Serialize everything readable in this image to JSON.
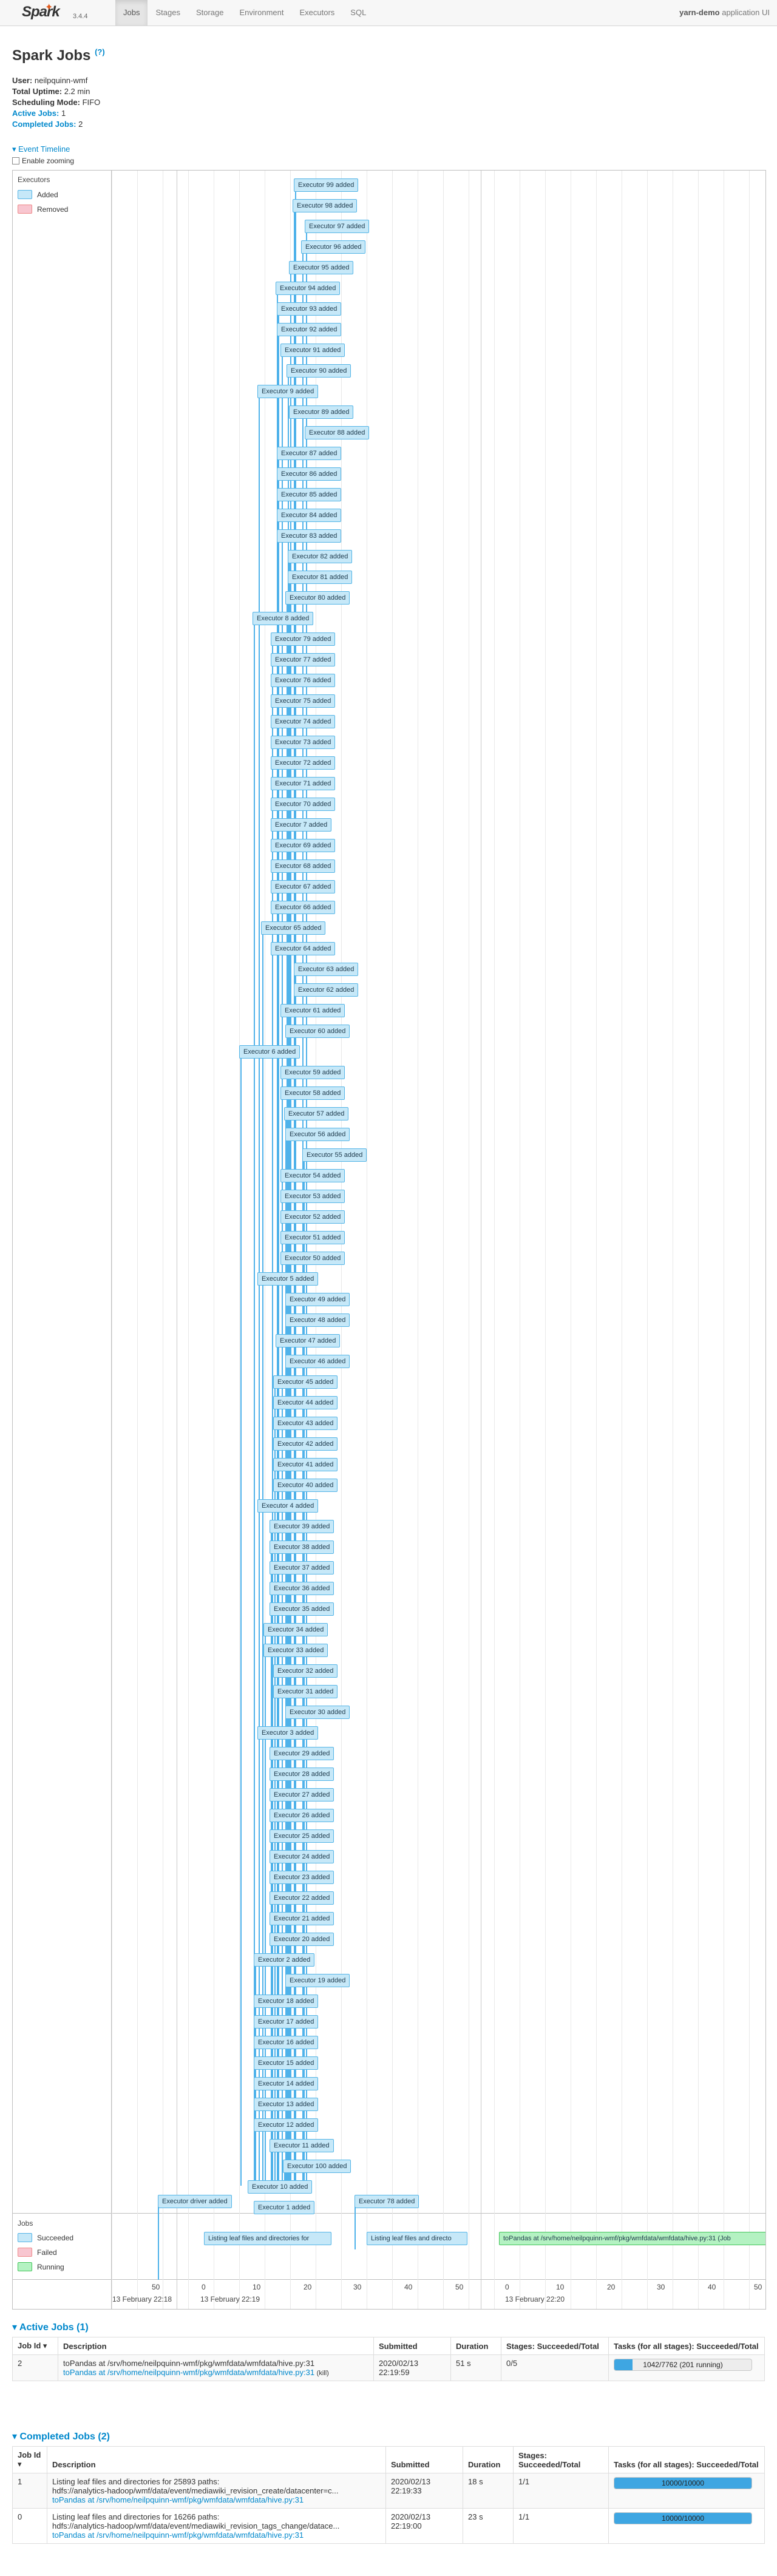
{
  "navbar": {
    "logo_text": "Spark",
    "version": "3.4.4",
    "tabs": [
      {
        "label": "Jobs",
        "active": true
      },
      {
        "label": "Stages",
        "active": false
      },
      {
        "label": "Storage",
        "active": false
      },
      {
        "label": "Environment",
        "active": false
      },
      {
        "label": "Executors",
        "active": false
      },
      {
        "label": "SQL",
        "active": false
      }
    ],
    "app_host": "yarn-demo",
    "app_suffix": "application UI"
  },
  "page": {
    "title": "Spark Jobs",
    "help": "(?)"
  },
  "summary": {
    "user_label": "User:",
    "user": "neilpquinn-wmf",
    "uptime_label": "Total Uptime:",
    "uptime": "2.2 min",
    "mode_label": "Scheduling Mode:",
    "mode": "FIFO",
    "active_jobs": "Active Jobs:",
    "active_count": "1",
    "completed_jobs": "Completed Jobs:",
    "completed_count": "2"
  },
  "timeline": {
    "toggle": "▾ Event Timeline",
    "zoom_label": "Enable zooming",
    "executors_group": "Executors",
    "legend_added": "Added",
    "legend_removed": "Removed",
    "jobs_group": "Jobs",
    "legend_succeeded": "Succeeded",
    "legend_failed": "Failed",
    "legend_running": "Running",
    "colors": {
      "added": "#c6e8f8",
      "removed": "#f8c6d0",
      "succeeded": "#c6e8f8",
      "failed": "#f8c6d0",
      "running": "#b4f2c2"
    },
    "axis_ticks": [
      "50",
      "0",
      "10",
      "20",
      "30",
      "40",
      "50",
      "0",
      "10",
      "20",
      "30",
      "40",
      "50"
    ],
    "axis_dates": [
      "13 February 22:18",
      "13 February 22:19",
      "13 February 22:20"
    ],
    "executor_events": [
      "Executor 99 added",
      "Executor 98 added",
      "Executor 97 added",
      "Executor 96 added",
      "Executor 95 added",
      "Executor 94 added",
      "Executor 93 added",
      "Executor 92 added",
      "Executor 91 added",
      "Executor 90 added",
      "Executor 9 added",
      "Executor 89 added",
      "Executor 88 added",
      "Executor 87 added",
      "Executor 86 added",
      "Executor 85 added",
      "Executor 84 added",
      "Executor 83 added",
      "Executor 82 added",
      "Executor 81 added",
      "Executor 80 added",
      "Executor 8 added",
      "Executor 79 added",
      "Executor 77 added",
      "Executor 76 added",
      "Executor 75 added",
      "Executor 74 added",
      "Executor 73 added",
      "Executor 72 added",
      "Executor 71 added",
      "Executor 70 added",
      "Executor 7 added",
      "Executor 69 added",
      "Executor 68 added",
      "Executor 67 added",
      "Executor 66 added",
      "Executor 65 added",
      "Executor 64 added",
      "Executor 63 added",
      "Executor 62 added",
      "Executor 61 added",
      "Executor 60 added",
      "Executor 6 added",
      "Executor 59 added",
      "Executor 58 added",
      "Executor 57 added",
      "Executor 56 added",
      "Executor 55 added",
      "Executor 54 added",
      "Executor 53 added",
      "Executor 52 added",
      "Executor 51 added",
      "Executor 50 added",
      "Executor 5 added",
      "Executor 49 added",
      "Executor 48 added",
      "Executor 47 added",
      "Executor 46 added",
      "Executor 45 added",
      "Executor 44 added",
      "Executor 43 added",
      "Executor 42 added",
      "Executor 41 added",
      "Executor 40 added",
      "Executor 4 added",
      "Executor 39 added",
      "Executor 38 added",
      "Executor 37 added",
      "Executor 36 added",
      "Executor 35 added",
      "Executor 34 added",
      "Executor 33 added",
      "Executor 32 added",
      "Executor 31 added",
      "Executor 30 added",
      "Executor 3 added",
      "Executor 29 added",
      "Executor 28 added",
      "Executor 27 added",
      "Executor 26 added",
      "Executor 25 added",
      "Executor 24 added",
      "Executor 23 added",
      "Executor 22 added",
      "Executor 21 added",
      "Executor 20 added",
      "Executor 2 added",
      "Executor 19 added",
      "Executor 18 added",
      "Executor 17 added",
      "Executor 16 added",
      "Executor 15 added",
      "Executor 14 added",
      "Executor 13 added",
      "Executor 12 added",
      "Executor 11 added",
      "Executor 100 added",
      "Executor 10 added",
      "Executor 1 added"
    ],
    "driver_event": "Executor driver added",
    "executor_78_event": "Executor 78 added",
    "job_bars": [
      {
        "label": "Listing leaf files and directories for",
        "state": "succeeded"
      },
      {
        "label": "Listing leaf files and directo",
        "state": "succeeded"
      },
      {
        "label": "toPandas at /srv/home/neilpquinn-wmf/pkg/wmfdata/wmfdata/hive.py:31 (Job",
        "state": "running"
      }
    ]
  },
  "active_jobs": {
    "title": "▾ Active Jobs (1)",
    "headers": {
      "id": "Job Id ▾",
      "desc": "Description",
      "submitted": "Submitted",
      "duration": "Duration",
      "stages": "Stages: Succeeded/Total",
      "tasks": "Tasks (for all stages): Succeeded/Total"
    },
    "rows": [
      {
        "id": "2",
        "desc_line1": "toPandas at /srv/home/neilpquinn-wmf/pkg/wmfdata/wmfdata/hive.py:31",
        "desc_link": "toPandas at /srv/home/neilpquinn-wmf/pkg/wmfdata/wmfdata/hive.py:31",
        "kill": "(kill)",
        "submitted": "2020/02/13 22:19:59",
        "duration": "51 s",
        "stages": "0/5",
        "tasks_text": "1042/7762 (201 running)",
        "progress": 0.134
      }
    ]
  },
  "completed_jobs": {
    "title": "▾ Completed Jobs (2)",
    "headers": {
      "id": "Job Id ▾",
      "desc": "Description",
      "submitted": "Submitted",
      "duration": "Duration",
      "stages": "Stages: Succeeded/Total",
      "tasks": "Tasks (for all stages): Succeeded/Total"
    },
    "rows": [
      {
        "id": "1",
        "desc_line1": "Listing leaf files and directories for 25893 paths:",
        "desc_line2": "hdfs://analytics-hadoop/wmf/data/event/mediawiki_revision_create/datacenter=c...",
        "desc_link": "toPandas at /srv/home/neilpquinn-wmf/pkg/wmfdata/wmfdata/hive.py:31",
        "submitted": "2020/02/13 22:19:33",
        "duration": "18 s",
        "stages": "1/1",
        "tasks_text": "10000/10000",
        "progress": 1.0
      },
      {
        "id": "0",
        "desc_line1": "Listing leaf files and directories for 16266 paths:",
        "desc_line2": "hdfs://analytics-hadoop/wmf/data/event/mediawiki_revision_tags_change/datace...",
        "desc_link": "toPandas at /srv/home/neilpquinn-wmf/pkg/wmfdata/wmfdata/hive.py:31",
        "submitted": "2020/02/13 22:19:00",
        "duration": "23 s",
        "stages": "1/1",
        "tasks_text": "10000/10000",
        "progress": 1.0
      }
    ]
  }
}
